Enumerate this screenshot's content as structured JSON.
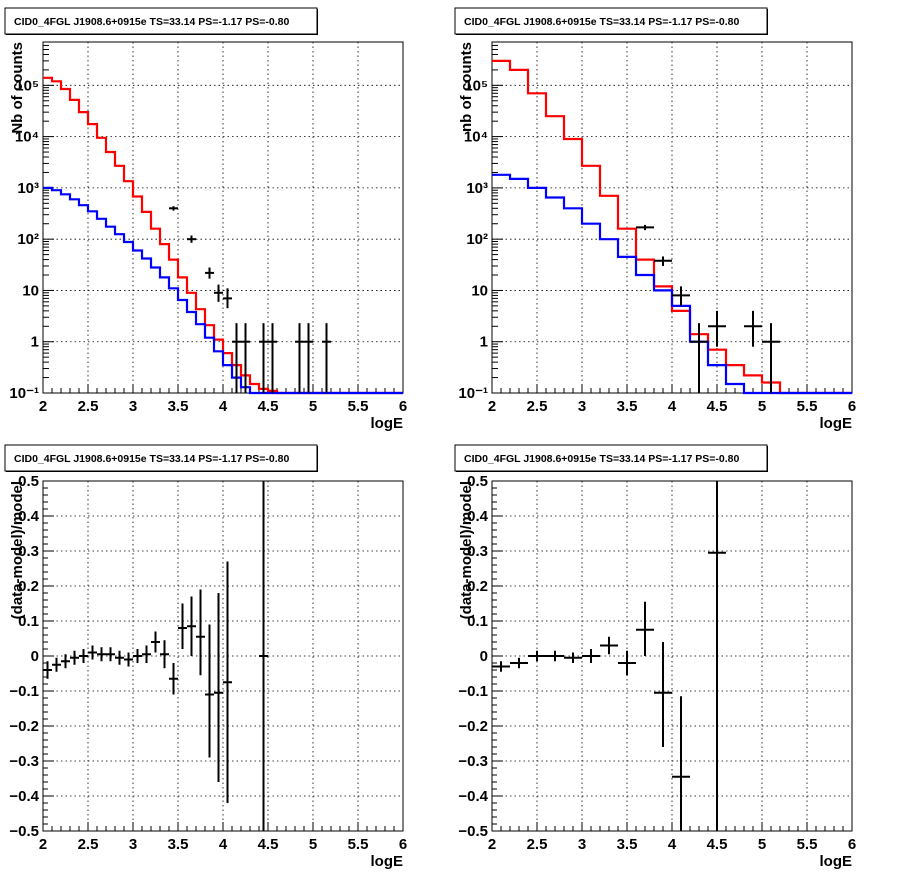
{
  "chart_data": [
    {
      "type": "line",
      "title": "CID0_4FGL J1908.6+0915e TS=33.14 PS=-1.17 PS=-0.80",
      "xlabel": "logE",
      "ylabel": "Nb of counts",
      "ylog": true,
      "xlim": [
        2,
        6
      ],
      "ylim": [
        0.1,
        700000
      ],
      "xticks": [
        2,
        2.5,
        3,
        3.5,
        4,
        4.5,
        5,
        5.5,
        6
      ],
      "xtick_labels": [
        "2",
        "2.5",
        "3",
        "3.5",
        "4",
        "4.5",
        "5",
        "5.5",
        "6"
      ],
      "yticks": [
        0.1,
        1,
        10,
        100,
        1000,
        10000,
        100000
      ],
      "ytick_labels": [
        "10⁻¹",
        "1",
        "10",
        "10²",
        "10³",
        "10⁴",
        "10⁵"
      ],
      "grid": true,
      "bin_width": 0.1,
      "series": [
        {
          "color": "#ff0000",
          "x": [
            2.0,
            2.1,
            2.2,
            2.3,
            2.4,
            2.5,
            2.6,
            2.7,
            2.8,
            2.9,
            3.0,
            3.1,
            3.2,
            3.3,
            3.4,
            3.5,
            3.6,
            3.7,
            3.8,
            3.9,
            4.0,
            4.1,
            4.2,
            4.3,
            4.4,
            4.5,
            4.6,
            4.7,
            4.8,
            4.9,
            5.0,
            5.1,
            5.2,
            5.3,
            5.4,
            5.5,
            5.6,
            5.7,
            5.8,
            5.9
          ],
          "values": [
            140000,
            120000,
            85000,
            52000,
            30000,
            17500,
            9500,
            5000,
            2700,
            1350,
            680,
            340,
            160,
            80,
            40,
            18,
            9,
            4.3,
            2.1,
            1.1,
            0.6,
            0.35,
            0.22,
            0.15,
            0.12,
            0.11,
            0.1,
            0.1,
            0.1,
            0.1,
            0.1,
            0.1,
            0.1,
            0.1,
            0.1,
            0.1,
            0.1,
            0.1,
            0.1,
            0.1
          ]
        },
        {
          "color": "#0000ff",
          "x": [
            2.0,
            2.1,
            2.2,
            2.3,
            2.4,
            2.5,
            2.6,
            2.7,
            2.8,
            2.9,
            3.0,
            3.1,
            3.2,
            3.3,
            3.4,
            3.5,
            3.6,
            3.7,
            3.8,
            3.9,
            4.0,
            4.1,
            4.2,
            4.3,
            4.4,
            4.5,
            4.6,
            4.7,
            4.8,
            4.9,
            5.0,
            5.1,
            5.2,
            5.3,
            5.4,
            5.5,
            5.6,
            5.7,
            5.8,
            5.9
          ],
          "values": [
            1000,
            900,
            750,
            600,
            460,
            350,
            250,
            175,
            125,
            88,
            60,
            42,
            28,
            18,
            11,
            6.5,
            3.8,
            2.2,
            1.2,
            0.65,
            0.35,
            0.2,
            0.13,
            0.1,
            0.1,
            0.1,
            0.1,
            0.1,
            0.1,
            0.1,
            0.1,
            0.1,
            0.1,
            0.1,
            0.1,
            0.1,
            0.1,
            0.1,
            0.1,
            0.1
          ]
        }
      ],
      "points": [
        {
          "x": 3.45,
          "y": 400,
          "lo": 360,
          "hi": 440,
          "xerr": 0.05
        },
        {
          "x": 3.65,
          "y": 100,
          "lo": 85,
          "hi": 118,
          "xerr": 0.05
        },
        {
          "x": 3.85,
          "y": 22,
          "lo": 17,
          "hi": 28,
          "xerr": 0.05
        },
        {
          "x": 3.95,
          "y": 9,
          "lo": 6,
          "hi": 13,
          "xerr": 0.05
        },
        {
          "x": 4.05,
          "y": 7,
          "lo": 4.5,
          "hi": 11,
          "xerr": 0.05
        },
        {
          "x": 4.15,
          "y": 1,
          "lo": 0.1,
          "hi": 2.3,
          "xerr": 0.05
        },
        {
          "x": 4.25,
          "y": 1,
          "lo": 0.1,
          "hi": 2.3,
          "xerr": 0.05
        },
        {
          "x": 4.45,
          "y": 1,
          "lo": 0.1,
          "hi": 2.3,
          "xerr": 0.05
        },
        {
          "x": 4.55,
          "y": 1,
          "lo": 0.1,
          "hi": 2.3,
          "xerr": 0.05
        },
        {
          "x": 4.85,
          "y": 1,
          "lo": 0.1,
          "hi": 2.3,
          "xerr": 0.05
        },
        {
          "x": 4.95,
          "y": 1,
          "lo": 0.1,
          "hi": 2.3,
          "xerr": 0.05
        },
        {
          "x": 5.15,
          "y": 1,
          "lo": 0.1,
          "hi": 2.3,
          "xerr": 0.05
        }
      ]
    },
    {
      "type": "line",
      "title": "CID0_4FGL J1908.6+0915e TS=33.14 PS=-1.17 PS=-0.80",
      "xlabel": "logE",
      "ylabel": "nb of counts",
      "ylog": true,
      "xlim": [
        2,
        6
      ],
      "ylim": [
        0.1,
        700000
      ],
      "xticks": [
        2,
        2.5,
        3,
        3.5,
        4,
        4.5,
        5,
        5.5,
        6
      ],
      "xtick_labels": [
        "2",
        "2.5",
        "3",
        "3.5",
        "4",
        "4.5",
        "5",
        "5.5",
        "6"
      ],
      "yticks": [
        0.1,
        1,
        10,
        100,
        1000,
        10000,
        100000
      ],
      "ytick_labels": [
        "10⁻¹",
        "1",
        "10",
        "10²",
        "10³",
        "10⁴",
        "10⁵"
      ],
      "grid": true,
      "bin_width": 0.2,
      "series": [
        {
          "color": "#ff0000",
          "x": [
            2.0,
            2.2,
            2.4,
            2.6,
            2.8,
            3.0,
            3.2,
            3.4,
            3.6,
            3.8,
            4.0,
            4.2,
            4.4,
            4.6,
            4.8,
            5.0,
            5.2,
            5.4,
            5.6,
            5.8
          ],
          "values": [
            300000,
            200000,
            70000,
            25000,
            9000,
            2700,
            700,
            160,
            40,
            12,
            4,
            1.4,
            0.7,
            0.35,
            0.22,
            0.16,
            0.1,
            0.1,
            0.1,
            0.1
          ]
        },
        {
          "color": "#0000ff",
          "x": [
            2.0,
            2.2,
            2.4,
            2.6,
            2.8,
            3.0,
            3.2,
            3.4,
            3.6,
            3.8,
            4.0,
            4.2,
            4.4,
            4.6,
            4.8,
            5.0,
            5.2,
            5.4,
            5.6,
            5.8
          ],
          "values": [
            1800,
            1500,
            1000,
            650,
            400,
            200,
            100,
            45,
            20,
            10,
            5,
            1,
            0.35,
            0.15,
            0.1,
            0.1,
            0.1,
            0.1,
            0.1,
            0.1
          ]
        }
      ],
      "points": [
        {
          "x": 3.7,
          "y": 170,
          "lo": 150,
          "hi": 190,
          "xerr": 0.1
        },
        {
          "x": 3.9,
          "y": 38,
          "lo": 30,
          "hi": 46,
          "xerr": 0.1
        },
        {
          "x": 4.1,
          "y": 8,
          "lo": 5,
          "hi": 12,
          "xerr": 0.1
        },
        {
          "x": 4.3,
          "y": 1,
          "lo": 0.1,
          "hi": 2.3,
          "xerr": 0.1
        },
        {
          "x": 4.5,
          "y": 2,
          "lo": 0.8,
          "hi": 4,
          "xerr": 0.1
        },
        {
          "x": 4.9,
          "y": 2,
          "lo": 0.8,
          "hi": 4,
          "xerr": 0.1
        },
        {
          "x": 5.1,
          "y": 1,
          "lo": 0.1,
          "hi": 2.3,
          "xerr": 0.1
        }
      ]
    },
    {
      "type": "scatter",
      "title": "CID0_4FGL J1908.6+0915e TS=33.14 PS=-1.17 PS=-0.80",
      "xlabel": "logE",
      "ylabel": "(data-model)/model",
      "ylog": false,
      "xlim": [
        2,
        6
      ],
      "ylim": [
        -0.5,
        0.5
      ],
      "xticks": [
        2,
        2.5,
        3,
        3.5,
        4,
        4.5,
        5,
        5.5,
        6
      ],
      "xtick_labels": [
        "2",
        "2.5",
        "3",
        "3.5",
        "4",
        "4.5",
        "5",
        "5.5",
        "6"
      ],
      "yticks": [
        -0.5,
        -0.4,
        -0.3,
        -0.2,
        -0.1,
        0,
        0.1,
        0.2,
        0.3,
        0.4,
        0.5
      ],
      "ytick_labels": [
        "−0.5",
        "−0.4",
        "−0.3",
        "−0.2",
        "−0.1",
        "0",
        "0.1",
        "0.2",
        "0.3",
        "0.4",
        "0.5"
      ],
      "grid": true,
      "points": [
        {
          "x": 2.05,
          "y": -0.04,
          "lo": -0.065,
          "hi": -0.015,
          "xerr": 0.05
        },
        {
          "x": 2.15,
          "y": -0.025,
          "lo": -0.045,
          "hi": -0.005,
          "xerr": 0.05
        },
        {
          "x": 2.25,
          "y": -0.015,
          "lo": -0.035,
          "hi": 0.005,
          "xerr": 0.05
        },
        {
          "x": 2.35,
          "y": -0.005,
          "lo": -0.025,
          "hi": 0.015,
          "xerr": 0.05
        },
        {
          "x": 2.45,
          "y": 0.0,
          "lo": -0.02,
          "hi": 0.02,
          "xerr": 0.05
        },
        {
          "x": 2.55,
          "y": 0.01,
          "lo": -0.01,
          "hi": 0.03,
          "xerr": 0.05
        },
        {
          "x": 2.65,
          "y": 0.005,
          "lo": -0.015,
          "hi": 0.025,
          "xerr": 0.05
        },
        {
          "x": 2.75,
          "y": 0.005,
          "lo": -0.015,
          "hi": 0.025,
          "xerr": 0.05
        },
        {
          "x": 2.85,
          "y": -0.005,
          "lo": -0.025,
          "hi": 0.015,
          "xerr": 0.05
        },
        {
          "x": 2.95,
          "y": -0.01,
          "lo": -0.03,
          "hi": 0.01,
          "xerr": 0.05
        },
        {
          "x": 3.05,
          "y": 0.0,
          "lo": -0.02,
          "hi": 0.02,
          "xerr": 0.05
        },
        {
          "x": 3.15,
          "y": 0.005,
          "lo": -0.02,
          "hi": 0.03,
          "xerr": 0.05
        },
        {
          "x": 3.25,
          "y": 0.04,
          "lo": 0.01,
          "hi": 0.07,
          "xerr": 0.05
        },
        {
          "x": 3.35,
          "y": 0.005,
          "lo": -0.035,
          "hi": 0.045,
          "xerr": 0.05
        },
        {
          "x": 3.45,
          "y": -0.065,
          "lo": -0.11,
          "hi": -0.02,
          "xerr": 0.05
        },
        {
          "x": 3.55,
          "y": 0.08,
          "lo": 0.02,
          "hi": 0.15,
          "xerr": 0.05
        },
        {
          "x": 3.65,
          "y": 0.085,
          "lo": 0.0,
          "hi": 0.17,
          "xerr": 0.05
        },
        {
          "x": 3.75,
          "y": 0.055,
          "lo": -0.055,
          "hi": 0.19,
          "xerr": 0.05
        },
        {
          "x": 3.85,
          "y": -0.11,
          "lo": -0.29,
          "hi": 0.09,
          "xerr": 0.05
        },
        {
          "x": 3.95,
          "y": -0.105,
          "lo": -0.36,
          "hi": 0.18,
          "xerr": 0.05
        },
        {
          "x": 4.05,
          "y": -0.075,
          "lo": -0.42,
          "hi": 0.27,
          "xerr": 0.05
        },
        {
          "x": 4.45,
          "y": 0.0,
          "lo": -0.5,
          "hi": 0.5,
          "xerr": 0.05
        }
      ]
    },
    {
      "type": "scatter",
      "title": "CID0_4FGL J1908.6+0915e TS=33.14 PS=-1.17 PS=-0.80",
      "xlabel": "logE",
      "ylabel": "(data-model)/model",
      "ylog": false,
      "xlim": [
        2,
        6
      ],
      "ylim": [
        -0.5,
        0.5
      ],
      "xticks": [
        2,
        2.5,
        3,
        3.5,
        4,
        4.5,
        5,
        5.5,
        6
      ],
      "xtick_labels": [
        "2",
        "2.5",
        "3",
        "3.5",
        "4",
        "4.5",
        "5",
        "5.5",
        "6"
      ],
      "yticks": [
        -0.5,
        -0.4,
        -0.3,
        -0.2,
        -0.1,
        0,
        0.1,
        0.2,
        0.3,
        0.4,
        0.5
      ],
      "ytick_labels": [
        "−0.5",
        "−0.4",
        "−0.3",
        "−0.2",
        "−0.1",
        "0",
        "0.1",
        "0.2",
        "0.3",
        "0.4",
        "0.5"
      ],
      "grid": true,
      "points": [
        {
          "x": 2.1,
          "y": -0.03,
          "lo": -0.045,
          "hi": -0.015,
          "xerr": 0.1
        },
        {
          "x": 2.3,
          "y": -0.02,
          "lo": -0.035,
          "hi": -0.005,
          "xerr": 0.1
        },
        {
          "x": 2.5,
          "y": 0.0,
          "lo": -0.015,
          "hi": 0.015,
          "xerr": 0.1
        },
        {
          "x": 2.7,
          "y": 0.0,
          "lo": -0.015,
          "hi": 0.015,
          "xerr": 0.1
        },
        {
          "x": 2.9,
          "y": -0.005,
          "lo": -0.02,
          "hi": 0.01,
          "xerr": 0.1
        },
        {
          "x": 3.1,
          "y": 0.0,
          "lo": -0.02,
          "hi": 0.02,
          "xerr": 0.1
        },
        {
          "x": 3.3,
          "y": 0.03,
          "lo": 0.005,
          "hi": 0.055,
          "xerr": 0.1
        },
        {
          "x": 3.5,
          "y": -0.02,
          "lo": -0.055,
          "hi": 0.015,
          "xerr": 0.1
        },
        {
          "x": 3.7,
          "y": 0.075,
          "lo": 0.0,
          "hi": 0.155,
          "xerr": 0.1
        },
        {
          "x": 3.9,
          "y": -0.105,
          "lo": -0.26,
          "hi": 0.04,
          "xerr": 0.1
        },
        {
          "x": 4.1,
          "y": -0.345,
          "lo": -0.5,
          "hi": -0.115,
          "xerr": 0.1
        },
        {
          "x": 4.5,
          "y": 0.295,
          "lo": -0.5,
          "hi": 0.5,
          "xerr": 0.1
        }
      ]
    }
  ]
}
